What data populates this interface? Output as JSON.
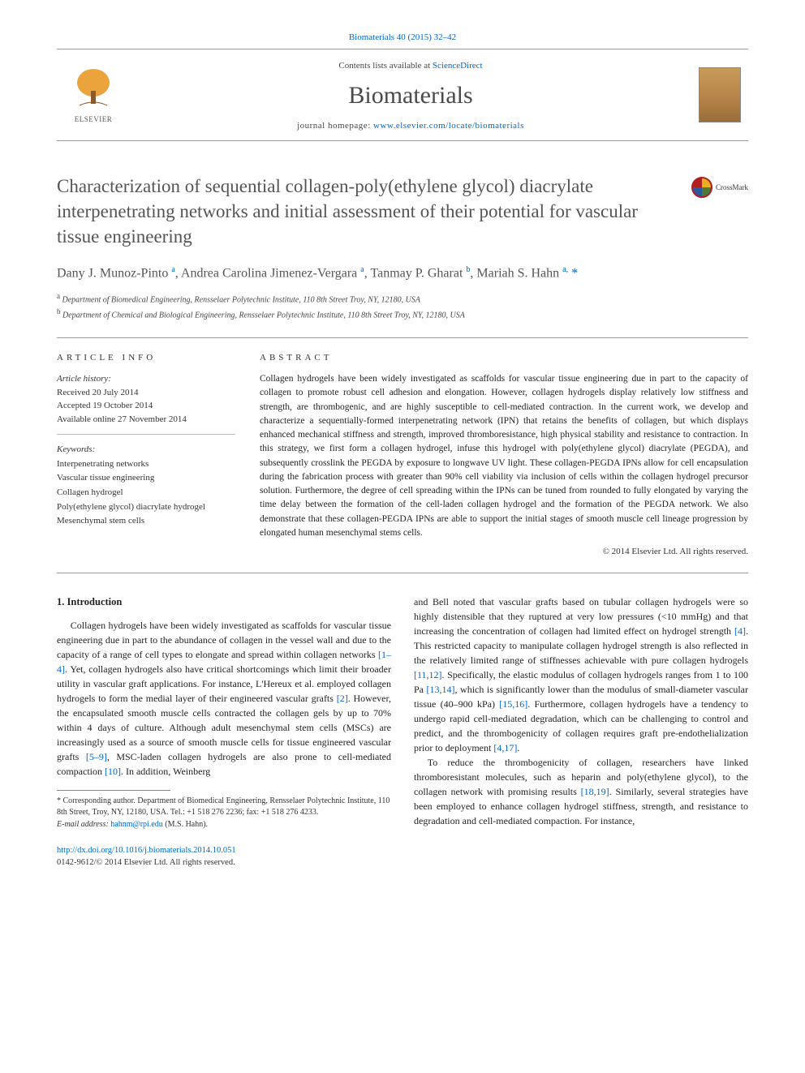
{
  "citation": "Biomaterials 40 (2015) 32–42",
  "masthead": {
    "contents_prefix": "Contents lists available at ",
    "contents_link": "ScienceDirect",
    "journal": "Biomaterials",
    "homepage_prefix": "journal homepage: ",
    "homepage_link": "www.elsevier.com/locate/biomaterials",
    "publisher": "ELSEVIER"
  },
  "crossmark": "CrossMark",
  "title": "Characterization of sequential collagen-poly(ethylene glycol) diacrylate interpenetrating networks and initial assessment of their potential for vascular tissue engineering",
  "authors_html": "Dany J. Munoz-Pinto <sup>a</sup>, Andrea Carolina Jimenez-Vergara <sup>a</sup>, Tanmay P. Gharat <sup>b</sup>, Mariah S. Hahn <sup>a,</sup> <span class='ast'>*</span>",
  "affiliations": {
    "a": "Department of Biomedical Engineering, Rensselaer Polytechnic Institute, 110 8th Street Troy, NY, 12180, USA",
    "b": "Department of Chemical and Biological Engineering, Rensselaer Polytechnic Institute, 110 8th Street Troy, NY, 12180, USA"
  },
  "labels": {
    "article_info": "ARTICLE INFO",
    "abstract": "ABSTRACT",
    "history": "Article history:",
    "keywords": "Keywords:"
  },
  "history": {
    "received": "Received 20 July 2014",
    "accepted": "Accepted 19 October 2014",
    "online": "Available online 27 November 2014"
  },
  "keywords": [
    "Interpenetrating networks",
    "Vascular tissue engineering",
    "Collagen hydrogel",
    "Poly(ethylene glycol) diacrylate hydrogel",
    "Mesenchymal stem cells"
  ],
  "abstract": "Collagen hydrogels have been widely investigated as scaffolds for vascular tissue engineering due in part to the capacity of collagen to promote robust cell adhesion and elongation. However, collagen hydrogels display relatively low stiffness and strength, are thrombogenic, and are highly susceptible to cell-mediated contraction. In the current work, we develop and characterize a sequentially-formed interpenetrating network (IPN) that retains the benefits of collagen, but which displays enhanced mechanical stiffness and strength, improved thromboresistance, high physical stability and resistance to contraction. In this strategy, we first form a collagen hydrogel, infuse this hydrogel with poly(ethylene glycol) diacrylate (PEGDA), and subsequently crosslink the PEGDA by exposure to longwave UV light. These collagen-PEGDA IPNs allow for cell encapsulation during the fabrication process with greater than 90% cell viability via inclusion of cells within the collagen hydrogel precursor solution. Furthermore, the degree of cell spreading within the IPNs can be tuned from rounded to fully elongated by varying the time delay between the formation of the cell-laden collagen hydrogel and the formation of the PEGDA network. We also demonstrate that these collagen-PEGDA IPNs are able to support the initial stages of smooth muscle cell lineage progression by elongated human mesenchymal stems cells.",
  "copyright": "© 2014 Elsevier Ltd. All rights reserved.",
  "intro_heading": "1. Introduction",
  "intro_p1_a": "Collagen hydrogels have been widely investigated as scaffolds for vascular tissue engineering due in part to the abundance of collagen in the vessel wall and due to the capacity of a range of cell types to elongate and spread within collagen networks ",
  "intro_p1_cite1": "[1–4]",
  "intro_p1_b": ". Yet, collagen hydrogels also have critical shortcomings which limit their broader utility in vascular graft applications. For instance, L'Hereux et al. employed collagen hydrogels to form the medial layer of their engineered vascular grafts ",
  "intro_p1_cite2": "[2]",
  "intro_p1_c": ". However, the encapsulated smooth muscle cells contracted the collagen gels by up to 70% within 4 days of culture. Although adult mesenchymal stem cells (MSCs) are increasingly used as a source of smooth muscle cells for tissue engineered vascular grafts ",
  "intro_p1_cite3": "[5–9]",
  "intro_p1_d": ", MSC-laden collagen hydrogels are also prone to cell-mediated compaction ",
  "intro_p1_cite4": "[10]",
  "intro_p1_e": ". In addition, Weinberg ",
  "intro_p2_a": "and Bell noted that vascular grafts based on tubular collagen hydrogels were so highly distensible that they ruptured at very low pressures (<10 mmHg) and that increasing the concentration of collagen had limited effect on hydrogel strength ",
  "intro_p2_cite1": "[4]",
  "intro_p2_b": ". This restricted capacity to manipulate collagen hydrogel strength is also reflected in the relatively limited range of stiffnesses achievable with pure collagen hydrogels ",
  "intro_p2_cite2": "[11,12]",
  "intro_p2_c": ". Specifically, the elastic modulus of collagen hydrogels ranges from 1 to 100 Pa ",
  "intro_p2_cite3": "[13,14]",
  "intro_p2_d": ", which is significantly lower than the modulus of small-diameter vascular tissue (40–900 kPa) ",
  "intro_p2_cite4": "[15,16]",
  "intro_p2_e": ". Furthermore, collagen hydrogels have a tendency to undergo rapid cell-mediated degradation, which can be challenging to control and predict, and the thrombogenicity of collagen requires graft pre-endothelialization prior to deployment ",
  "intro_p2_cite5": "[4,17]",
  "intro_p2_f": ".",
  "intro_p3_a": "To reduce the thrombogenicity of collagen, researchers have linked thromboresistant molecules, such as heparin and poly(ethylene glycol), to the collagen network with promising results ",
  "intro_p3_cite1": "[18,19]",
  "intro_p3_b": ". Similarly, several strategies have been employed to enhance collagen hydrogel stiffness, strength, and resistance to degradation and cell-mediated compaction. For instance,",
  "footnote": {
    "corr": "* Corresponding author. Department of Biomedical Engineering, Rensselaer Polytechnic Institute, 110 8th Street, Troy, NY, 12180, USA. Tel.: +1 518 276 2236; fax: +1 518 276 4233.",
    "email_label": "E-mail address: ",
    "email": "hahnm@rpi.edu",
    "email_suffix": " (M.S. Hahn)."
  },
  "footer": {
    "doi": "http://dx.doi.org/10.1016/j.biomaterials.2014.10.051",
    "issn_line": "0142-9612/© 2014 Elsevier Ltd. All rights reserved."
  },
  "colors": {
    "link": "#0066cc",
    "text": "#2a2a2a",
    "heading_gray": "#555555",
    "rule": "#999999"
  }
}
